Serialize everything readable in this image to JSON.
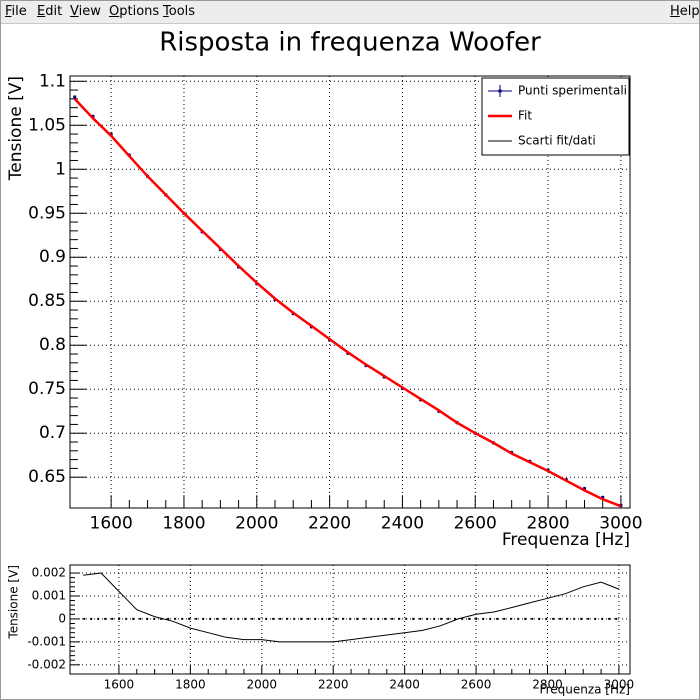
{
  "menu": [
    "File",
    "Edit",
    "View",
    "Options",
    "Tools"
  ],
  "help": "Help",
  "title": "Risposta in frequenza Woofer",
  "chart_data": [
    {
      "type": "scatter",
      "x_label": "Frequenza [Hz]",
      "y_label": "Tensione [V]",
      "x": [
        1500,
        1550,
        1600,
        1650,
        1700,
        1750,
        1800,
        1850,
        1900,
        1950,
        2000,
        2050,
        2100,
        2150,
        2200,
        2250,
        2300,
        2350,
        2400,
        2450,
        2500,
        2550,
        2600,
        2650,
        2700,
        2750,
        2800,
        2850,
        2900,
        2950,
        3000
      ],
      "xlim": [
        1487,
        3025
      ],
      "xticks": [
        1600,
        1800,
        2000,
        2200,
        2400,
        2600,
        2800,
        3000
      ],
      "ylim": [
        0.615,
        1.106
      ],
      "yticks": [
        0.65,
        0.7,
        0.75,
        0.8,
        0.85,
        0.9,
        0.95,
        1,
        1.05,
        1.1
      ],
      "grid": true,
      "legend": "top-right",
      "series": [
        {
          "name": "Punti sperimentali",
          "color": "#000080",
          "values": [
            1.082,
            1.06,
            1.04,
            1.016,
            0.992,
            0.971,
            0.95,
            0.929,
            0.909,
            0.889,
            0.87,
            0.852,
            0.836,
            0.821,
            0.806,
            0.791,
            0.777,
            0.764,
            0.751,
            0.738,
            0.725,
            0.712,
            0.7,
            0.689,
            0.678,
            0.668,
            0.658,
            0.647,
            0.637,
            0.627,
            0.618
          ],
          "errors": [
            0.002,
            0.002,
            0.002,
            0.002,
            0.002,
            0.002,
            0.002,
            0.002,
            0.002,
            0.002,
            0.002,
            0.002,
            0.002,
            0.002,
            0.002,
            0.002,
            0.002,
            0.002,
            0.002,
            0.002,
            0.002,
            0.002,
            0.002,
            0.002,
            0.002,
            0.002,
            0.002,
            0.002,
            0.002,
            0.002,
            0.002
          ]
        },
        {
          "name": "Fit",
          "color": "#ff0000",
          "values": [
            1.08,
            1.058,
            1.038,
            1.015,
            0.992,
            0.971,
            0.95,
            0.93,
            0.91,
            0.89,
            0.871,
            0.853,
            0.837,
            0.822,
            0.807,
            0.792,
            0.778,
            0.765,
            0.752,
            0.739,
            0.726,
            0.712,
            0.7,
            0.689,
            0.677,
            0.667,
            0.657,
            0.646,
            0.635,
            0.625,
            0.617
          ]
        }
      ]
    },
    {
      "type": "line",
      "x_label": "Frequenza [Hz]",
      "y_label": "Tensione [V]",
      "x": [
        1500,
        1550,
        1600,
        1650,
        1700,
        1750,
        1800,
        1850,
        1900,
        1950,
        2000,
        2050,
        2100,
        2150,
        2200,
        2250,
        2300,
        2350,
        2400,
        2450,
        2500,
        2550,
        2600,
        2650,
        2700,
        2750,
        2800,
        2850,
        2900,
        2950,
        3000
      ],
      "xlim": [
        1463,
        3031
      ],
      "xticks": [
        1600,
        1800,
        2000,
        2200,
        2400,
        2600,
        2800,
        3000
      ],
      "ylim": [
        -0.0024,
        0.00235
      ],
      "yticks": [
        -0.002,
        -0.001,
        0,
        0.001,
        0.002
      ],
      "grid": true,
      "baseline": 0,
      "series": [
        {
          "name": "Scarti fit/dati",
          "color": "#000000",
          "values": [
            0.0019,
            0.002,
            0.0012,
            0.0004,
            0.0001,
            -0.0001,
            -0.0004,
            -0.0006,
            -0.0008,
            -0.0009,
            -0.0009,
            -0.001,
            -0.001,
            -0.001,
            -0.001,
            -0.0009,
            -0.0008,
            -0.0007,
            -0.0006,
            -0.0005,
            -0.0003,
            0.0,
            0.0002,
            0.0003,
            0.0005,
            0.0007,
            0.0009,
            0.0011,
            0.0014,
            0.0016,
            0.0013
          ]
        }
      ]
    }
  ]
}
